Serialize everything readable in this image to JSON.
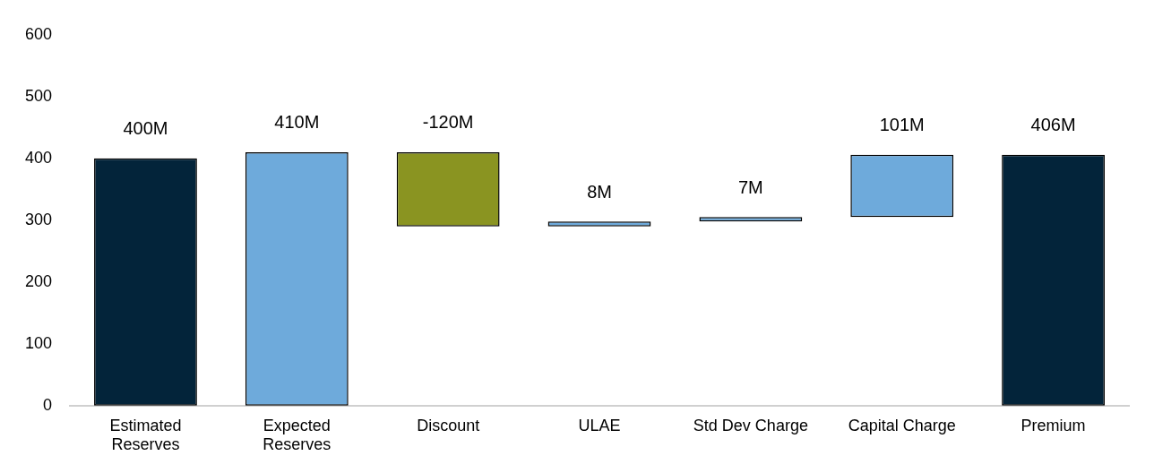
{
  "chart_data": {
    "type": "bar",
    "categories": [
      "Estimated Reserves",
      "Expected Reserves",
      "Discount",
      "ULAE",
      "Std Dev Charge",
      "Capital Charge",
      "Premium"
    ],
    "values": [
      400,
      410,
      -120,
      8,
      7,
      101,
      406
    ],
    "base": [
      0,
      0,
      410,
      290,
      298,
      305,
      0
    ],
    "colors": [
      "#03243a",
      "#6eaadb",
      "#8a9421",
      "#6eaadb",
      "#6eaadb",
      "#6eaadb",
      "#03243a"
    ],
    "value_labels": [
      "400M",
      "410M",
      "-120M",
      "8M",
      "7M",
      "101M",
      "406M"
    ],
    "ylim": [
      0,
      600
    ],
    "yticks": [
      0,
      100,
      200,
      300,
      400,
      500,
      600
    ],
    "grid": false,
    "legend": false
  }
}
